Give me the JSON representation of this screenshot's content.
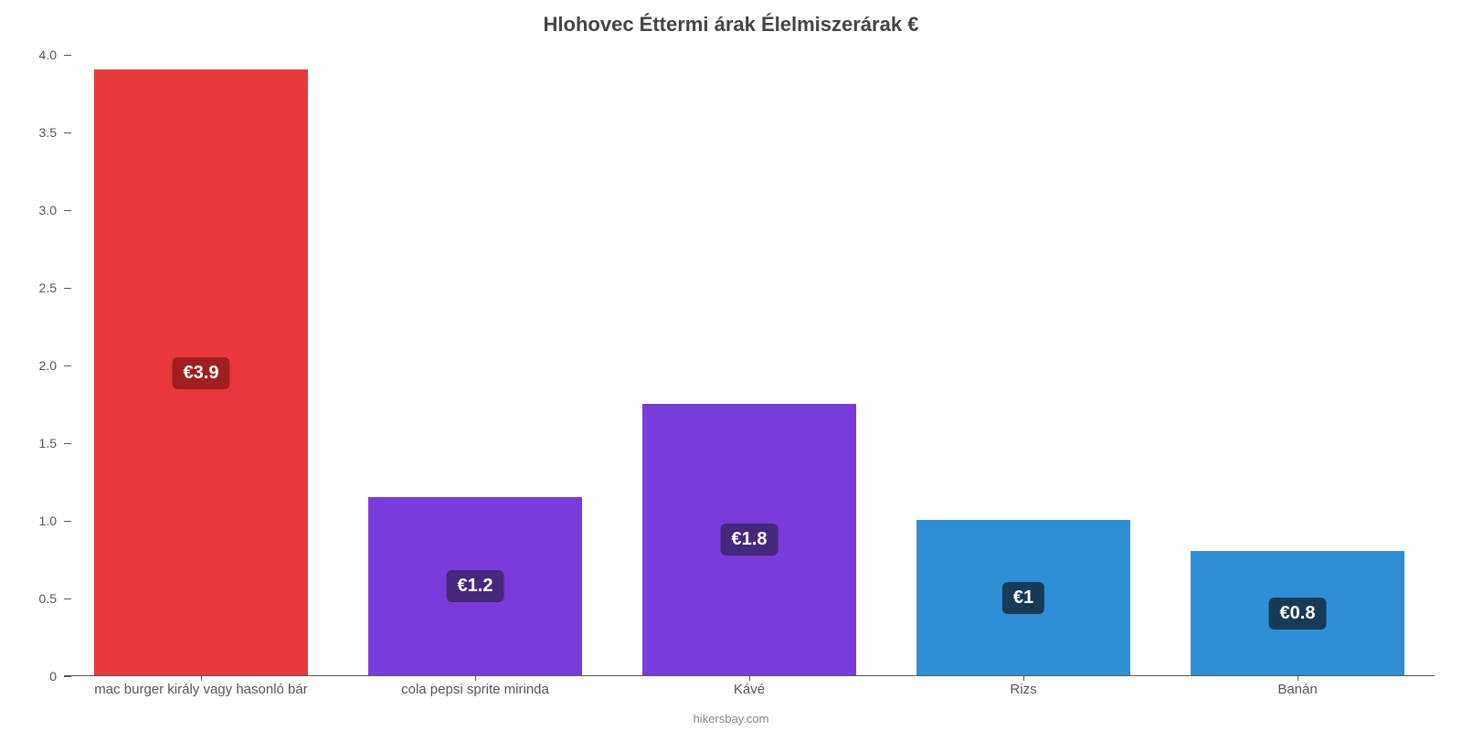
{
  "chart": {
    "type": "bar",
    "title": "Hlohovec Éttermi árak Élelmiszerárak €",
    "title_fontsize": 22,
    "title_color": "#444444",
    "source": "hikersbay.com",
    "source_color": "#888888",
    "source_fontsize": 13,
    "background_color": "#ffffff",
    "axis_color": "#555555",
    "label_color": "#555555",
    "xlabel_fontsize": 15,
    "ytick_fontsize": 14,
    "ylim_min": 0,
    "ylim_max": 4.0,
    "yticks": [
      {
        "v": 0,
        "label": "0"
      },
      {
        "v": 0.5,
        "label": "0.5"
      },
      {
        "v": 1.0,
        "label": "1.0"
      },
      {
        "v": 1.5,
        "label": "1.5"
      },
      {
        "v": 2.0,
        "label": "2.0"
      },
      {
        "v": 2.5,
        "label": "2.5"
      },
      {
        "v": 3.0,
        "label": "3.0"
      },
      {
        "v": 3.5,
        "label": "3.5"
      },
      {
        "v": 4.0,
        "label": "4.0"
      }
    ],
    "bar_width_ratio": 0.78,
    "value_label_fontsize": 20,
    "value_label_text_color": "#ffffff",
    "series": [
      {
        "category": "mac burger király vagy hasonló bár",
        "value": 3.9,
        "value_label": "€3.9",
        "bar_color": "#e8383b",
        "badge_bg": "#a11f1f"
      },
      {
        "category": "cola pepsi sprite mirinda",
        "value": 1.15,
        "value_label": "€1.2",
        "bar_color": "#7a3bdc",
        "badge_bg": "#45287a"
      },
      {
        "category": "Kávé",
        "value": 1.75,
        "value_label": "€1.8",
        "bar_color": "#7a3bdc",
        "badge_bg": "#45287a"
      },
      {
        "category": "Rizs",
        "value": 1.0,
        "value_label": "€1",
        "bar_color": "#2f8fd5",
        "badge_bg": "#153b56"
      },
      {
        "category": "Banán",
        "value": 0.8,
        "value_label": "€0.8",
        "bar_color": "#2f8fd5",
        "badge_bg": "#153b56"
      }
    ]
  }
}
